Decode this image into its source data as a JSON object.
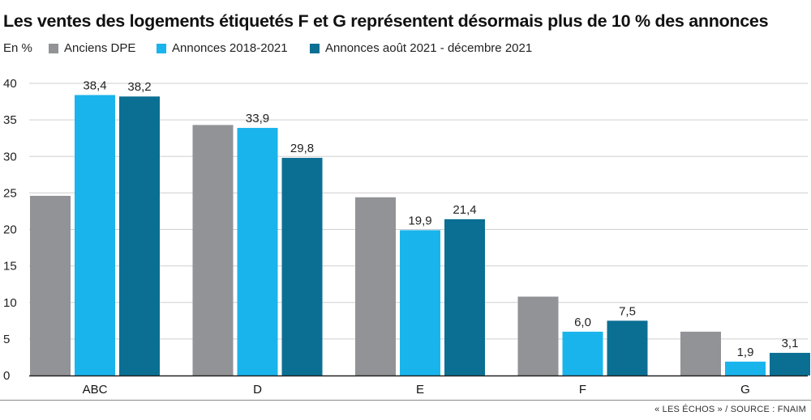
{
  "title": "Les ventes des logements étiquetés F et G représentent désormais plus de 10 % des annonces",
  "unit_label": "En %",
  "source": "« LES ÉCHOS » / SOURCE : FNAIM",
  "colors": {
    "anciens": "#929396",
    "annonces_2018": "#1ab4ec",
    "annonces_2021": "#0b6f93",
    "grid": "#cfcfcf",
    "axis": "#222222"
  },
  "chart_data": {
    "type": "bar",
    "categories": [
      "ABC",
      "D",
      "E",
      "F",
      "G"
    ],
    "series": [
      {
        "name": "Anciens DPE",
        "values": [
          24.6,
          34.3,
          24.4,
          10.8,
          6.0
        ],
        "labels": [
          "",
          "",
          "",
          "",
          ""
        ]
      },
      {
        "name": "Annonces 2018-2021",
        "values": [
          38.4,
          33.9,
          19.9,
          6.0,
          1.9
        ],
        "labels": [
          "38,4",
          "33,9",
          "19,9",
          "6,0",
          "1,9"
        ]
      },
      {
        "name": "Annonces août 2021 - décembre 2021",
        "values": [
          38.2,
          29.8,
          21.4,
          7.5,
          3.1
        ],
        "labels": [
          "38,2",
          "29,8",
          "21,4",
          "7,5",
          "3,1"
        ]
      }
    ],
    "ylim": [
      0,
      40
    ],
    "yticks": [
      0,
      5,
      10,
      15,
      20,
      25,
      30,
      35,
      40
    ],
    "grid": true,
    "legend_position": "top"
  }
}
